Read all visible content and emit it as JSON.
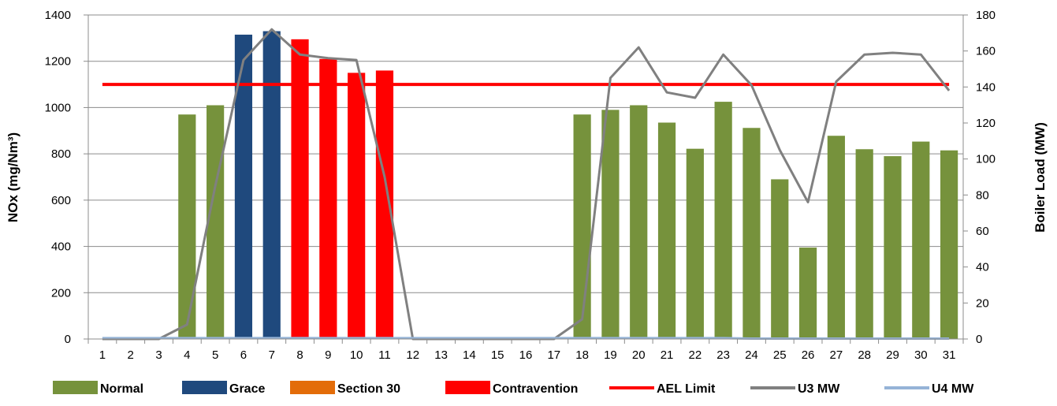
{
  "chart_data": {
    "type": "bar",
    "title": "",
    "categories": [
      "1",
      "2",
      "3",
      "4",
      "5",
      "6",
      "7",
      "8",
      "9",
      "10",
      "11",
      "12",
      "13",
      "14",
      "15",
      "16",
      "17",
      "18",
      "19",
      "20",
      "21",
      "22",
      "23",
      "24",
      "25",
      "26",
      "27",
      "28",
      "29",
      "30",
      "31"
    ],
    "ylabel": "NOx (mg/Nm³)",
    "y2label": "Boiler Load (MW)",
    "ylim": [
      0,
      1400
    ],
    "y2lim": [
      0,
      180
    ],
    "yticks": [
      "0",
      "200",
      "400",
      "600",
      "800",
      "1000",
      "1200",
      "1400"
    ],
    "y2ticks": [
      "0",
      "20",
      "40",
      "60",
      "80",
      "100",
      "120",
      "140",
      "160",
      "180"
    ],
    "grid": true,
    "legend_position": "bottom",
    "bars": [
      {
        "day": 4,
        "value": 970,
        "status": "Normal"
      },
      {
        "day": 5,
        "value": 1010,
        "status": "Normal"
      },
      {
        "day": 6,
        "value": 1315,
        "status": "Grace"
      },
      {
        "day": 7,
        "value": 1330,
        "status": "Grace"
      },
      {
        "day": 8,
        "value": 1295,
        "status": "Contravention"
      },
      {
        "day": 9,
        "value": 1210,
        "status": "Contravention"
      },
      {
        "day": 10,
        "value": 1150,
        "status": "Contravention"
      },
      {
        "day": 11,
        "value": 1160,
        "status": "Contravention"
      },
      {
        "day": 18,
        "value": 970,
        "status": "Normal"
      },
      {
        "day": 19,
        "value": 990,
        "status": "Normal"
      },
      {
        "day": 20,
        "value": 1010,
        "status": "Normal"
      },
      {
        "day": 21,
        "value": 935,
        "status": "Normal"
      },
      {
        "day": 22,
        "value": 822,
        "status": "Normal"
      },
      {
        "day": 23,
        "value": 1025,
        "status": "Normal"
      },
      {
        "day": 24,
        "value": 912,
        "status": "Normal"
      },
      {
        "day": 25,
        "value": 690,
        "status": "Normal"
      },
      {
        "day": 26,
        "value": 395,
        "status": "Normal"
      },
      {
        "day": 27,
        "value": 878,
        "status": "Normal"
      },
      {
        "day": 28,
        "value": 820,
        "status": "Normal"
      },
      {
        "day": 29,
        "value": 790,
        "status": "Normal"
      },
      {
        "day": 30,
        "value": 853,
        "status": "Normal"
      },
      {
        "day": 31,
        "value": 815,
        "status": "Normal"
      }
    ],
    "series": [
      {
        "name": "Normal",
        "type": "bar",
        "color": "#76923C"
      },
      {
        "name": "Grace",
        "type": "bar",
        "color": "#1F497D"
      },
      {
        "name": "Section 30",
        "type": "bar",
        "color": "#E36C09"
      },
      {
        "name": "Contravention",
        "type": "bar",
        "color": "#FF0000"
      },
      {
        "name": "AEL Limit",
        "type": "line",
        "axis": "left",
        "color": "#FF0000",
        "values": [
          1100,
          1100,
          1100,
          1100,
          1100,
          1100,
          1100,
          1100,
          1100,
          1100,
          1100,
          1100,
          1100,
          1100,
          1100,
          1100,
          1100,
          1100,
          1100,
          1100,
          1100,
          1100,
          1100,
          1100,
          1100,
          1100,
          1100,
          1100,
          1100,
          1100,
          1100
        ]
      },
      {
        "name": "U3 MW",
        "type": "line",
        "axis": "right",
        "color": "#808080",
        "values": [
          0,
          0,
          0,
          8,
          85,
          155,
          172,
          158,
          156,
          155,
          90,
          0,
          0,
          0,
          0,
          0,
          0,
          11,
          145,
          162,
          137,
          134,
          158,
          141,
          105,
          76,
          143,
          158,
          159,
          158,
          138
        ]
      },
      {
        "name": "U4 MW",
        "type": "line",
        "axis": "right",
        "color": "#95B3D7",
        "values": [
          0.5,
          0.5,
          0.5,
          0.5,
          0.5,
          0.5,
          0.5,
          0.5,
          0.5,
          0.5,
          0.5,
          0.5,
          0.5,
          0.5,
          0.5,
          0.5,
          0.5,
          0.5,
          0.5,
          0.5,
          0.5,
          0.5,
          0.5,
          0.2,
          0.2,
          0.2,
          0.2,
          0.2,
          0.2,
          0.2,
          0.2
        ]
      }
    ]
  }
}
